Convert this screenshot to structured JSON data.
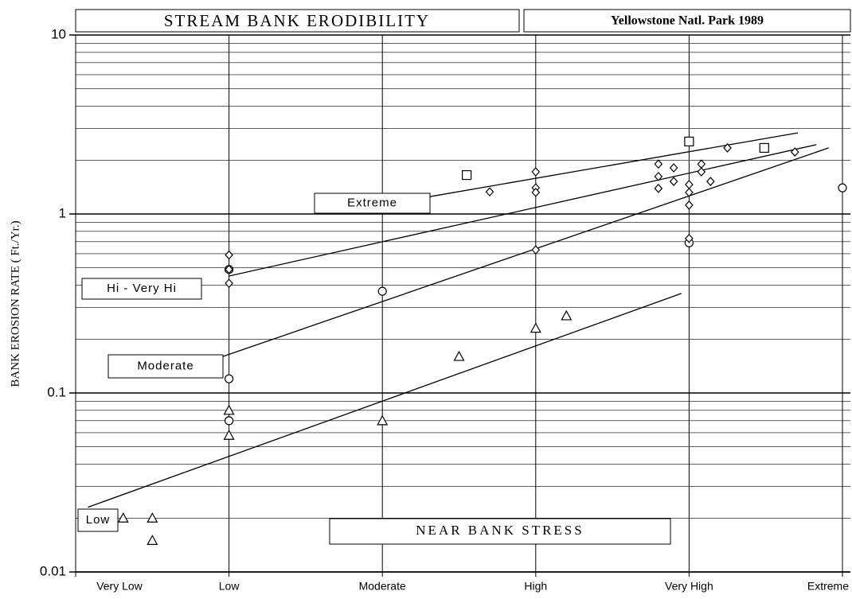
{
  "chart_data": {
    "type": "scatter",
    "title": "STREAM BANK ERODIBILITY",
    "subtitle": "Yellowstone Natl. Park 1989",
    "x_label": "NEAR BANK STRESS",
    "y_label": "BANK EROSION RATE ( Ft./Yr.)",
    "log_y": true,
    "grid": true,
    "xlim": [
      0,
      5
    ],
    "xticks": [
      {
        "value": 0,
        "label": "Very Low"
      },
      {
        "value": 1,
        "label": "Low"
      },
      {
        "value": 2,
        "label": "Moderate"
      },
      {
        "value": 3,
        "label": "High"
      },
      {
        "value": 4,
        "label": "Very High"
      },
      {
        "value": 5,
        "label": "Extreme"
      }
    ],
    "ylim": [
      0.01,
      10
    ],
    "yticks": [
      0.01,
      0.1,
      1,
      10
    ],
    "series": [
      {
        "marker": "triangle",
        "color": "#000000",
        "x": [
          0.31,
          0.5,
          0.5,
          1,
          1,
          2,
          2.5,
          3,
          3.2
        ],
        "values": [
          0.02,
          0.02,
          0.015,
          0.08,
          0.058,
          0.07,
          0.16,
          0.23,
          0.27
        ]
      },
      {
        "marker": "circle",
        "color": "#000000",
        "x": [
          1,
          1,
          1,
          2,
          4,
          5
        ],
        "values": [
          0.12,
          0.07,
          0.49,
          0.37,
          0.69,
          1.4
        ]
      },
      {
        "marker": "diamond",
        "color": "#000000",
        "x": [
          1,
          1,
          1,
          2.7,
          3,
          3,
          3,
          3,
          3.8,
          3.8,
          3.8,
          3.9,
          3.9,
          4,
          4,
          4,
          4,
          4.08,
          4.08,
          4.14,
          4.25,
          4.69
        ],
        "values": [
          0.59,
          0.49,
          0.41,
          1.33,
          1.72,
          1.4,
          1.32,
          0.63,
          1.9,
          1.62,
          1.39,
          1.81,
          1.52,
          1.46,
          1.32,
          1.12,
          0.73,
          1.9,
          1.72,
          1.52,
          2.34,
          2.22
        ]
      },
      {
        "marker": "square",
        "color": "#000000",
        "x": [
          2.55,
          4,
          4.49
        ],
        "values": [
          1.65,
          2.54,
          2.34
        ]
      }
    ],
    "trend_lines": [
      {
        "label": "Extreme",
        "x": [
          2.31,
          4.71
        ],
        "values": [
          1.25,
          2.84
        ]
      },
      {
        "label": "Hi - Very Hi",
        "x": [
          1,
          4.83
        ],
        "values": [
          0.45,
          2.44
        ]
      },
      {
        "label": "Moderate",
        "x": [
          0.96,
          4.91
        ],
        "values": [
          0.16,
          2.34
        ]
      },
      {
        "label": "Low",
        "x": [
          0.08,
          3.95
        ],
        "values": [
          0.023,
          0.36
        ]
      }
    ]
  }
}
